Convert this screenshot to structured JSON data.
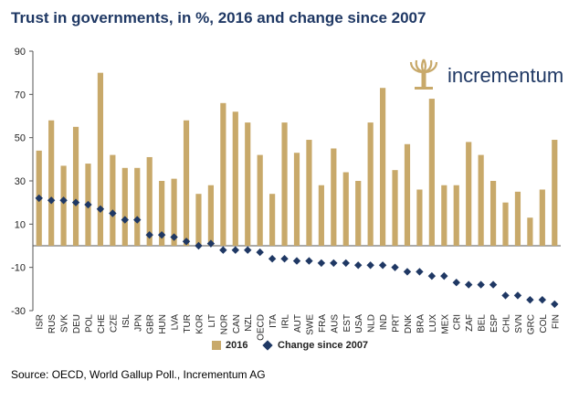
{
  "chart_data": {
    "type": "bar",
    "title": "Trust in governments, in %, 2016 and change since 2007",
    "categories": [
      "ISR",
      "RUS",
      "SVK",
      "DEU",
      "POL",
      "CHE",
      "CZE",
      "ISL",
      "JPN",
      "GBR",
      "HUN",
      "LVA",
      "TUR",
      "KOR",
      "LIT",
      "NOR",
      "CAN",
      "NZL",
      "OECD",
      "ITA",
      "IRL",
      "AUT",
      "SWE",
      "FRA",
      "AUS",
      "EST",
      "USA",
      "NLD",
      "IND",
      "PRT",
      "DNK",
      "BRA",
      "LUX",
      "MEX",
      "CRI",
      "ZAF",
      "BEL",
      "ESP",
      "CHL",
      "SVN",
      "GRC",
      "COL",
      "FIN"
    ],
    "series": [
      {
        "name": "2016",
        "kind": "bar",
        "color": "#c8a96a",
        "values": [
          44,
          58,
          37,
          55,
          38,
          80,
          42,
          36,
          36,
          41,
          30,
          31,
          58,
          24,
          28,
          66,
          62,
          57,
          42,
          24,
          57,
          43,
          49,
          28,
          45,
          34,
          30,
          57,
          73,
          35,
          47,
          26,
          68,
          28,
          28,
          48,
          42,
          30,
          20,
          25,
          13,
          26,
          49
        ]
      },
      {
        "name": "Change since 2007",
        "kind": "marker",
        "color": "#1f3864",
        "values": [
          22,
          21,
          21,
          20,
          19,
          17,
          15,
          12,
          12,
          5,
          5,
          4,
          2,
          0,
          1,
          -2,
          -2,
          -2,
          -3,
          -6,
          -6,
          -7,
          -7,
          -8,
          -8,
          -8,
          -9,
          -9,
          -9,
          -10,
          -12,
          -12,
          -14,
          -14,
          -17,
          -18,
          -18,
          -18,
          -23,
          -23,
          -25,
          -25,
          -27
        ]
      }
    ],
    "ylim": [
      -30,
      90
    ],
    "yticks": [
      -30,
      -10,
      10,
      30,
      50,
      70,
      90
    ],
    "xlabel": "",
    "ylabel": "",
    "grid": false,
    "legend": "bottom-center"
  },
  "logo": {
    "text": "incrementum"
  },
  "source": "Source: OECD, World Gallup Poll., Incrementum AG"
}
